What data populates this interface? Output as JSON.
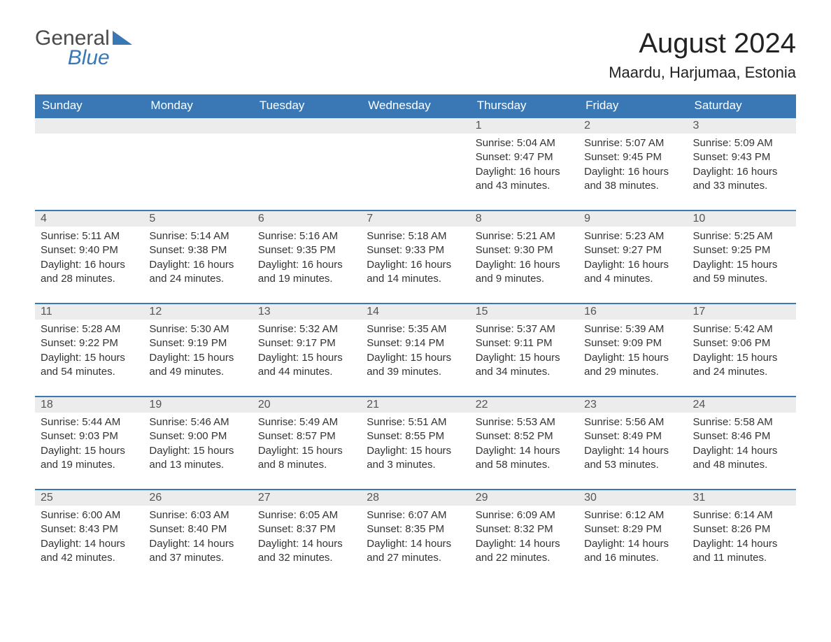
{
  "brand": {
    "name_part1": "General",
    "name_part2": "Blue",
    "flag_color": "#3a78b5"
  },
  "header": {
    "month_title": "August 2024",
    "location": "Maardu, Harjumaa, Estonia"
  },
  "style": {
    "header_bg": "#3a78b5",
    "header_text": "#ffffff",
    "daynum_bg": "#ececec",
    "border_color": "#3a78b5",
    "body_text": "#333333",
    "title_text": "#222222",
    "font_family": "Arial, Helvetica, sans-serif",
    "month_title_fontsize": 40,
    "location_fontsize": 22,
    "dayheader_fontsize": 17,
    "daynum_fontsize": 16,
    "content_fontsize": 15
  },
  "day_headers": [
    "Sunday",
    "Monday",
    "Tuesday",
    "Wednesday",
    "Thursday",
    "Friday",
    "Saturday"
  ],
  "weeks": [
    [
      {
        "empty": true
      },
      {
        "empty": true
      },
      {
        "empty": true
      },
      {
        "empty": true
      },
      {
        "day": "1",
        "sunrise": "Sunrise: 5:04 AM",
        "sunset": "Sunset: 9:47 PM",
        "daylight1": "Daylight: 16 hours",
        "daylight2": "and 43 minutes."
      },
      {
        "day": "2",
        "sunrise": "Sunrise: 5:07 AM",
        "sunset": "Sunset: 9:45 PM",
        "daylight1": "Daylight: 16 hours",
        "daylight2": "and 38 minutes."
      },
      {
        "day": "3",
        "sunrise": "Sunrise: 5:09 AM",
        "sunset": "Sunset: 9:43 PM",
        "daylight1": "Daylight: 16 hours",
        "daylight2": "and 33 minutes."
      }
    ],
    [
      {
        "day": "4",
        "sunrise": "Sunrise: 5:11 AM",
        "sunset": "Sunset: 9:40 PM",
        "daylight1": "Daylight: 16 hours",
        "daylight2": "and 28 minutes."
      },
      {
        "day": "5",
        "sunrise": "Sunrise: 5:14 AM",
        "sunset": "Sunset: 9:38 PM",
        "daylight1": "Daylight: 16 hours",
        "daylight2": "and 24 minutes."
      },
      {
        "day": "6",
        "sunrise": "Sunrise: 5:16 AM",
        "sunset": "Sunset: 9:35 PM",
        "daylight1": "Daylight: 16 hours",
        "daylight2": "and 19 minutes."
      },
      {
        "day": "7",
        "sunrise": "Sunrise: 5:18 AM",
        "sunset": "Sunset: 9:33 PM",
        "daylight1": "Daylight: 16 hours",
        "daylight2": "and 14 minutes."
      },
      {
        "day": "8",
        "sunrise": "Sunrise: 5:21 AM",
        "sunset": "Sunset: 9:30 PM",
        "daylight1": "Daylight: 16 hours",
        "daylight2": "and 9 minutes."
      },
      {
        "day": "9",
        "sunrise": "Sunrise: 5:23 AM",
        "sunset": "Sunset: 9:27 PM",
        "daylight1": "Daylight: 16 hours",
        "daylight2": "and 4 minutes."
      },
      {
        "day": "10",
        "sunrise": "Sunrise: 5:25 AM",
        "sunset": "Sunset: 9:25 PM",
        "daylight1": "Daylight: 15 hours",
        "daylight2": "and 59 minutes."
      }
    ],
    [
      {
        "day": "11",
        "sunrise": "Sunrise: 5:28 AM",
        "sunset": "Sunset: 9:22 PM",
        "daylight1": "Daylight: 15 hours",
        "daylight2": "and 54 minutes."
      },
      {
        "day": "12",
        "sunrise": "Sunrise: 5:30 AM",
        "sunset": "Sunset: 9:19 PM",
        "daylight1": "Daylight: 15 hours",
        "daylight2": "and 49 minutes."
      },
      {
        "day": "13",
        "sunrise": "Sunrise: 5:32 AM",
        "sunset": "Sunset: 9:17 PM",
        "daylight1": "Daylight: 15 hours",
        "daylight2": "and 44 minutes."
      },
      {
        "day": "14",
        "sunrise": "Sunrise: 5:35 AM",
        "sunset": "Sunset: 9:14 PM",
        "daylight1": "Daylight: 15 hours",
        "daylight2": "and 39 minutes."
      },
      {
        "day": "15",
        "sunrise": "Sunrise: 5:37 AM",
        "sunset": "Sunset: 9:11 PM",
        "daylight1": "Daylight: 15 hours",
        "daylight2": "and 34 minutes."
      },
      {
        "day": "16",
        "sunrise": "Sunrise: 5:39 AM",
        "sunset": "Sunset: 9:09 PM",
        "daylight1": "Daylight: 15 hours",
        "daylight2": "and 29 minutes."
      },
      {
        "day": "17",
        "sunrise": "Sunrise: 5:42 AM",
        "sunset": "Sunset: 9:06 PM",
        "daylight1": "Daylight: 15 hours",
        "daylight2": "and 24 minutes."
      }
    ],
    [
      {
        "day": "18",
        "sunrise": "Sunrise: 5:44 AM",
        "sunset": "Sunset: 9:03 PM",
        "daylight1": "Daylight: 15 hours",
        "daylight2": "and 19 minutes."
      },
      {
        "day": "19",
        "sunrise": "Sunrise: 5:46 AM",
        "sunset": "Sunset: 9:00 PM",
        "daylight1": "Daylight: 15 hours",
        "daylight2": "and 13 minutes."
      },
      {
        "day": "20",
        "sunrise": "Sunrise: 5:49 AM",
        "sunset": "Sunset: 8:57 PM",
        "daylight1": "Daylight: 15 hours",
        "daylight2": "and 8 minutes."
      },
      {
        "day": "21",
        "sunrise": "Sunrise: 5:51 AM",
        "sunset": "Sunset: 8:55 PM",
        "daylight1": "Daylight: 15 hours",
        "daylight2": "and 3 minutes."
      },
      {
        "day": "22",
        "sunrise": "Sunrise: 5:53 AM",
        "sunset": "Sunset: 8:52 PM",
        "daylight1": "Daylight: 14 hours",
        "daylight2": "and 58 minutes."
      },
      {
        "day": "23",
        "sunrise": "Sunrise: 5:56 AM",
        "sunset": "Sunset: 8:49 PM",
        "daylight1": "Daylight: 14 hours",
        "daylight2": "and 53 minutes."
      },
      {
        "day": "24",
        "sunrise": "Sunrise: 5:58 AM",
        "sunset": "Sunset: 8:46 PM",
        "daylight1": "Daylight: 14 hours",
        "daylight2": "and 48 minutes."
      }
    ],
    [
      {
        "day": "25",
        "sunrise": "Sunrise: 6:00 AM",
        "sunset": "Sunset: 8:43 PM",
        "daylight1": "Daylight: 14 hours",
        "daylight2": "and 42 minutes."
      },
      {
        "day": "26",
        "sunrise": "Sunrise: 6:03 AM",
        "sunset": "Sunset: 8:40 PM",
        "daylight1": "Daylight: 14 hours",
        "daylight2": "and 37 minutes."
      },
      {
        "day": "27",
        "sunrise": "Sunrise: 6:05 AM",
        "sunset": "Sunset: 8:37 PM",
        "daylight1": "Daylight: 14 hours",
        "daylight2": "and 32 minutes."
      },
      {
        "day": "28",
        "sunrise": "Sunrise: 6:07 AM",
        "sunset": "Sunset: 8:35 PM",
        "daylight1": "Daylight: 14 hours",
        "daylight2": "and 27 minutes."
      },
      {
        "day": "29",
        "sunrise": "Sunrise: 6:09 AM",
        "sunset": "Sunset: 8:32 PM",
        "daylight1": "Daylight: 14 hours",
        "daylight2": "and 22 minutes."
      },
      {
        "day": "30",
        "sunrise": "Sunrise: 6:12 AM",
        "sunset": "Sunset: 8:29 PM",
        "daylight1": "Daylight: 14 hours",
        "daylight2": "and 16 minutes."
      },
      {
        "day": "31",
        "sunrise": "Sunrise: 6:14 AM",
        "sunset": "Sunset: 8:26 PM",
        "daylight1": "Daylight: 14 hours",
        "daylight2": "and 11 minutes."
      }
    ]
  ]
}
